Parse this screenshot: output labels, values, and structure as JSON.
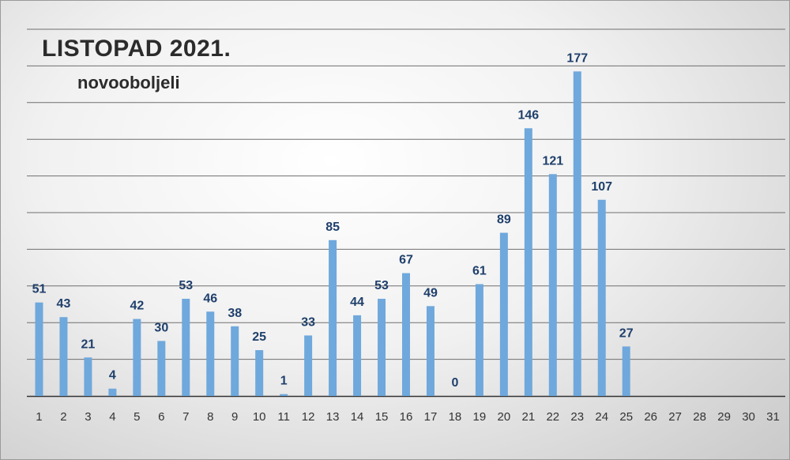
{
  "chart_data": {
    "type": "bar",
    "title": "LISTOPAD 2021.",
    "subtitle": "novooboljeli",
    "categories": [
      "1",
      "2",
      "3",
      "4",
      "5",
      "6",
      "7",
      "8",
      "9",
      "10",
      "11",
      "12",
      "13",
      "14",
      "15",
      "16",
      "17",
      "18",
      "19",
      "20",
      "21",
      "22",
      "23",
      "24",
      "25",
      "26",
      "27",
      "28",
      "29",
      "30",
      "31"
    ],
    "series": [
      {
        "values": [
          51,
          43,
          21,
          4,
          42,
          30,
          53,
          46,
          38,
          25,
          1,
          33,
          85,
          44,
          53,
          67,
          49,
          0,
          61,
          89,
          146,
          121,
          177,
          107,
          27,
          null,
          null,
          null,
          null,
          null,
          null
        ]
      }
    ],
    "ylim": [
      0,
      200
    ],
    "grid": true,
    "legend": "none",
    "colors": {
      "bar": "#6fa8dc",
      "label": "#1f3f6b",
      "grid": "#6f6f6f",
      "axis": "#333333"
    }
  }
}
